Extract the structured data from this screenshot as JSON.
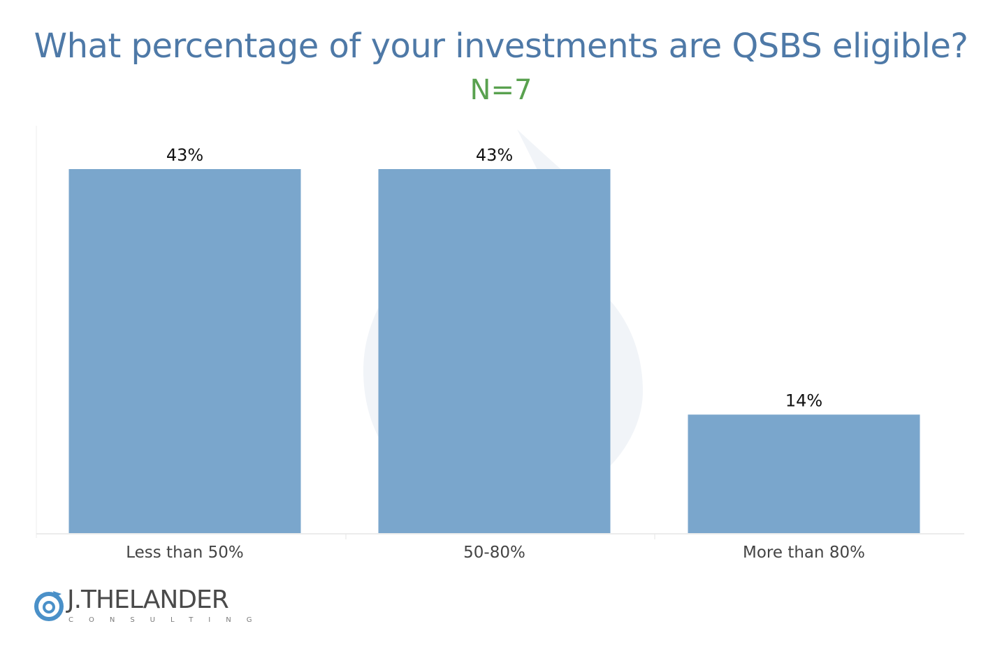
{
  "chart_data": {
    "type": "bar",
    "title": "What percentage of your investments are QSBS eligible?",
    "subtitle": "N=7",
    "categories": [
      "Less than 50%",
      "50-80%",
      "More than 80%"
    ],
    "values": [
      43,
      43,
      14
    ],
    "data_labels": [
      "43%",
      "43%",
      "14%"
    ],
    "ylim": [
      0,
      50
    ],
    "grid": false,
    "bar_color": "#73a1c9"
  },
  "brand": {
    "name": "J.THELANDER",
    "tagline": "CONSULTING",
    "watermark_icon": "spiral-logo-icon"
  },
  "colors": {
    "title": "#4e79a7",
    "subtitle": "#59a14f"
  }
}
